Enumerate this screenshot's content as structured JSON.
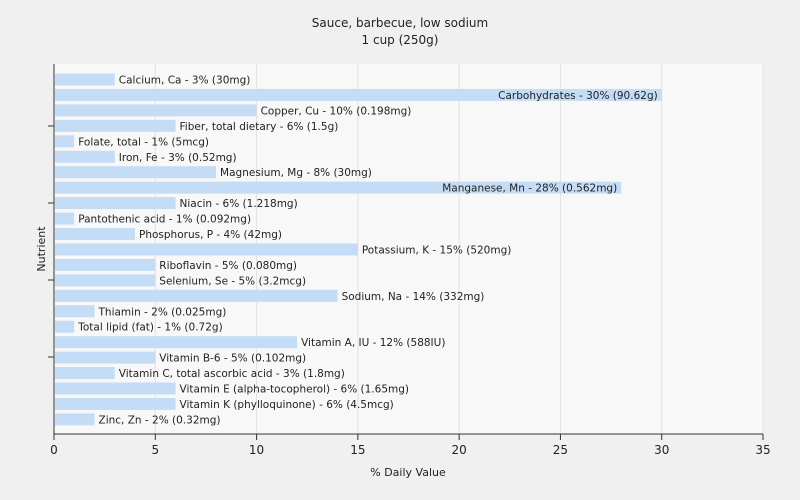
{
  "chart_data": {
    "type": "bar",
    "orientation": "horizontal",
    "title": "Sauce, barbecue, low sodium",
    "subtitle": "1 cup (250g)",
    "xlabel": "% Daily Value",
    "ylabel": "Nutrient",
    "xlim": [
      0,
      35
    ],
    "xticks": [
      0,
      5,
      10,
      15,
      20,
      25,
      30,
      35
    ],
    "grid": true,
    "bar_color": "#c5dcf7",
    "categories": [
      "Calcium, Ca",
      "Carbohydrates",
      "Copper, Cu",
      "Fiber, total dietary",
      "Folate, total",
      "Iron, Fe",
      "Magnesium, Mg",
      "Manganese, Mn",
      "Niacin",
      "Pantothenic acid",
      "Phosphorus, P",
      "Potassium, K",
      "Riboflavin",
      "Selenium, Se",
      "Sodium, Na",
      "Thiamin",
      "Total lipid (fat)",
      "Vitamin A, IU",
      "Vitamin B-6",
      "Vitamin C, total ascorbic acid",
      "Vitamin E (alpha-tocopherol)",
      "Vitamin K (phylloquinone)",
      "Zinc, Zn"
    ],
    "values": [
      3,
      30,
      10,
      6,
      1,
      3,
      8,
      28,
      6,
      1,
      4,
      15,
      5,
      5,
      14,
      2,
      1,
      12,
      5,
      3,
      6,
      6,
      2
    ],
    "labels": [
      "Calcium, Ca - 3% (30mg)",
      "Carbohydrates - 30% (90.62g)",
      "Copper, Cu - 10% (0.198mg)",
      "Fiber, total dietary - 6% (1.5g)",
      "Folate, total - 1% (5mcg)",
      "Iron, Fe - 3% (0.52mg)",
      "Magnesium, Mg - 8% (30mg)",
      "Manganese, Mn - 28% (0.562mg)",
      "Niacin - 6% (1.218mg)",
      "Pantothenic acid - 1% (0.092mg)",
      "Phosphorus, P - 4% (42mg)",
      "Potassium, K - 15% (520mg)",
      "Riboflavin - 5% (0.080mg)",
      "Selenium, Se - 5% (3.2mcg)",
      "Sodium, Na - 14% (332mg)",
      "Thiamin - 2% (0.025mg)",
      "Total lipid (fat) - 1% (0.72g)",
      "Vitamin A, IU - 12% (588IU)",
      "Vitamin B-6 - 5% (0.102mg)",
      "Vitamin C, total ascorbic acid - 3% (1.8mg)",
      "Vitamin E (alpha-tocopherol) - 6% (1.65mg)",
      "Vitamin K (phylloquinone) - 6% (4.5mcg)",
      "Zinc, Zn - 2% (0.32mg)"
    ]
  }
}
